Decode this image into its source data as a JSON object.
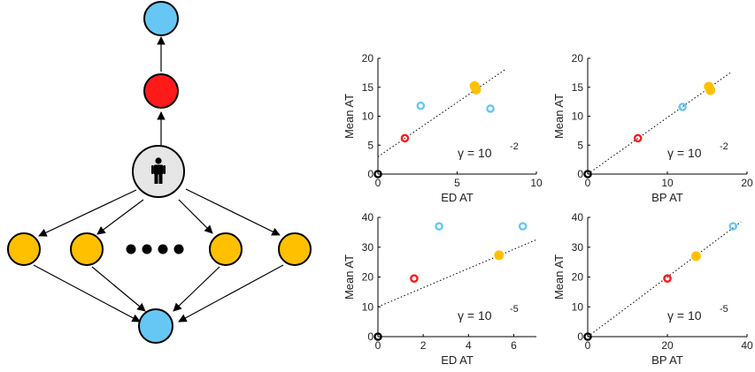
{
  "colors": {
    "person": "#e6e6e6",
    "red": "#ff1a1a",
    "blue": "#66c7f5",
    "yellow": "#ffc000",
    "black": "#000000"
  },
  "diagram": {
    "nodes": [
      {
        "id": "top-blue",
        "color": "blue"
      },
      {
        "id": "mid-red",
        "color": "red"
      },
      {
        "id": "person",
        "color": "person",
        "icon": "person-icon"
      },
      {
        "id": "yellow-1",
        "color": "yellow"
      },
      {
        "id": "yellow-2",
        "color": "yellow"
      },
      {
        "id": "yellow-3",
        "color": "yellow"
      },
      {
        "id": "yellow-4",
        "color": "yellow"
      },
      {
        "id": "bottom-blue",
        "color": "blue"
      }
    ],
    "ellipsis_dots": 4
  },
  "chart_data": [
    {
      "type": "scatter",
      "panel": "top-left",
      "xlabel": "ED AT",
      "ylabel": "Mean AT",
      "xlim": [
        0,
        10
      ],
      "ylim": [
        0,
        20
      ],
      "xticks": [
        "0",
        "5",
        "10"
      ],
      "yticks": [
        "0",
        "5",
        "10",
        "15",
        "20"
      ],
      "gamma_base": "γ = 10",
      "gamma_exp": "-2",
      "fit_line": [
        [
          0,
          3.0
        ],
        [
          8.0,
          18.0
        ]
      ],
      "points": [
        {
          "x": 0,
          "y": 0,
          "color": "black",
          "shape": "ring"
        },
        {
          "x": 1.7,
          "y": 6.2,
          "color": "red",
          "shape": "ring"
        },
        {
          "x": 2.7,
          "y": 11.8,
          "color": "blue",
          "shape": "ring"
        },
        {
          "x": 6.1,
          "y": 15.2,
          "color": "yellow",
          "shape": "filled"
        },
        {
          "x": 6.2,
          "y": 14.6,
          "color": "yellow",
          "shape": "filled"
        },
        {
          "x": 7.1,
          "y": 11.3,
          "color": "blue",
          "shape": "ring"
        }
      ]
    },
    {
      "type": "scatter",
      "panel": "top-right",
      "xlabel": "BP AT",
      "ylabel": "Mean AT",
      "xlim": [
        0,
        20
      ],
      "ylim": [
        0,
        20
      ],
      "xticks": [
        "0",
        "10",
        "20"
      ],
      "yticks": [
        "0",
        "5",
        "10",
        "15",
        "20"
      ],
      "gamma_base": "γ = 10",
      "gamma_exp": "-2",
      "fit_line": [
        [
          0,
          0
        ],
        [
          18.0,
          17.6
        ]
      ],
      "points": [
        {
          "x": 0,
          "y": 0,
          "color": "black",
          "shape": "ring"
        },
        {
          "x": 6.3,
          "y": 6.2,
          "color": "red",
          "shape": "ring"
        },
        {
          "x": 11.9,
          "y": 11.6,
          "color": "blue",
          "shape": "ring"
        },
        {
          "x": 15.2,
          "y": 15.1,
          "color": "yellow",
          "shape": "filled"
        },
        {
          "x": 15.4,
          "y": 14.5,
          "color": "yellow",
          "shape": "filled"
        }
      ]
    },
    {
      "type": "scatter",
      "panel": "bottom-left",
      "xlabel": "ED AT",
      "ylabel": "Mean AT",
      "xlim": [
        0,
        7
      ],
      "ylim": [
        0,
        40
      ],
      "xticks": [
        "0",
        "2",
        "4",
        "6"
      ],
      "yticks": [
        "0",
        "10",
        "20",
        "30",
        "40"
      ],
      "gamma_base": "γ = 10",
      "gamma_exp": "-5",
      "fit_line": [
        [
          0,
          10.0
        ],
        [
          7.0,
          32.5
        ]
      ],
      "points": [
        {
          "x": 0,
          "y": 0,
          "color": "black",
          "shape": "ring"
        },
        {
          "x": 1.6,
          "y": 19.5,
          "color": "red",
          "shape": "ring"
        },
        {
          "x": 2.7,
          "y": 37.0,
          "color": "blue",
          "shape": "ring"
        },
        {
          "x": 5.35,
          "y": 27.3,
          "color": "yellow",
          "shape": "filled"
        },
        {
          "x": 6.4,
          "y": 37.0,
          "color": "blue",
          "shape": "ring"
        }
      ]
    },
    {
      "type": "scatter",
      "panel": "bottom-right",
      "xlabel": "BP AT",
      "ylabel": "Mean AT",
      "xlim": [
        0,
        40
      ],
      "ylim": [
        0,
        40
      ],
      "xticks": [
        "0",
        "20",
        "40"
      ],
      "yticks": [
        "0",
        "10",
        "20",
        "30",
        "40"
      ],
      "gamma_base": "γ = 10",
      "gamma_exp": "-5",
      "fit_line": [
        [
          0,
          0
        ],
        [
          38.5,
          38.5
        ]
      ],
      "points": [
        {
          "x": 0,
          "y": 0,
          "color": "black",
          "shape": "ring"
        },
        {
          "x": 20.0,
          "y": 19.5,
          "color": "red",
          "shape": "ring"
        },
        {
          "x": 27.2,
          "y": 27.0,
          "color": "yellow",
          "shape": "filled"
        },
        {
          "x": 36.5,
          "y": 37.0,
          "color": "blue",
          "shape": "ring"
        }
      ]
    }
  ]
}
